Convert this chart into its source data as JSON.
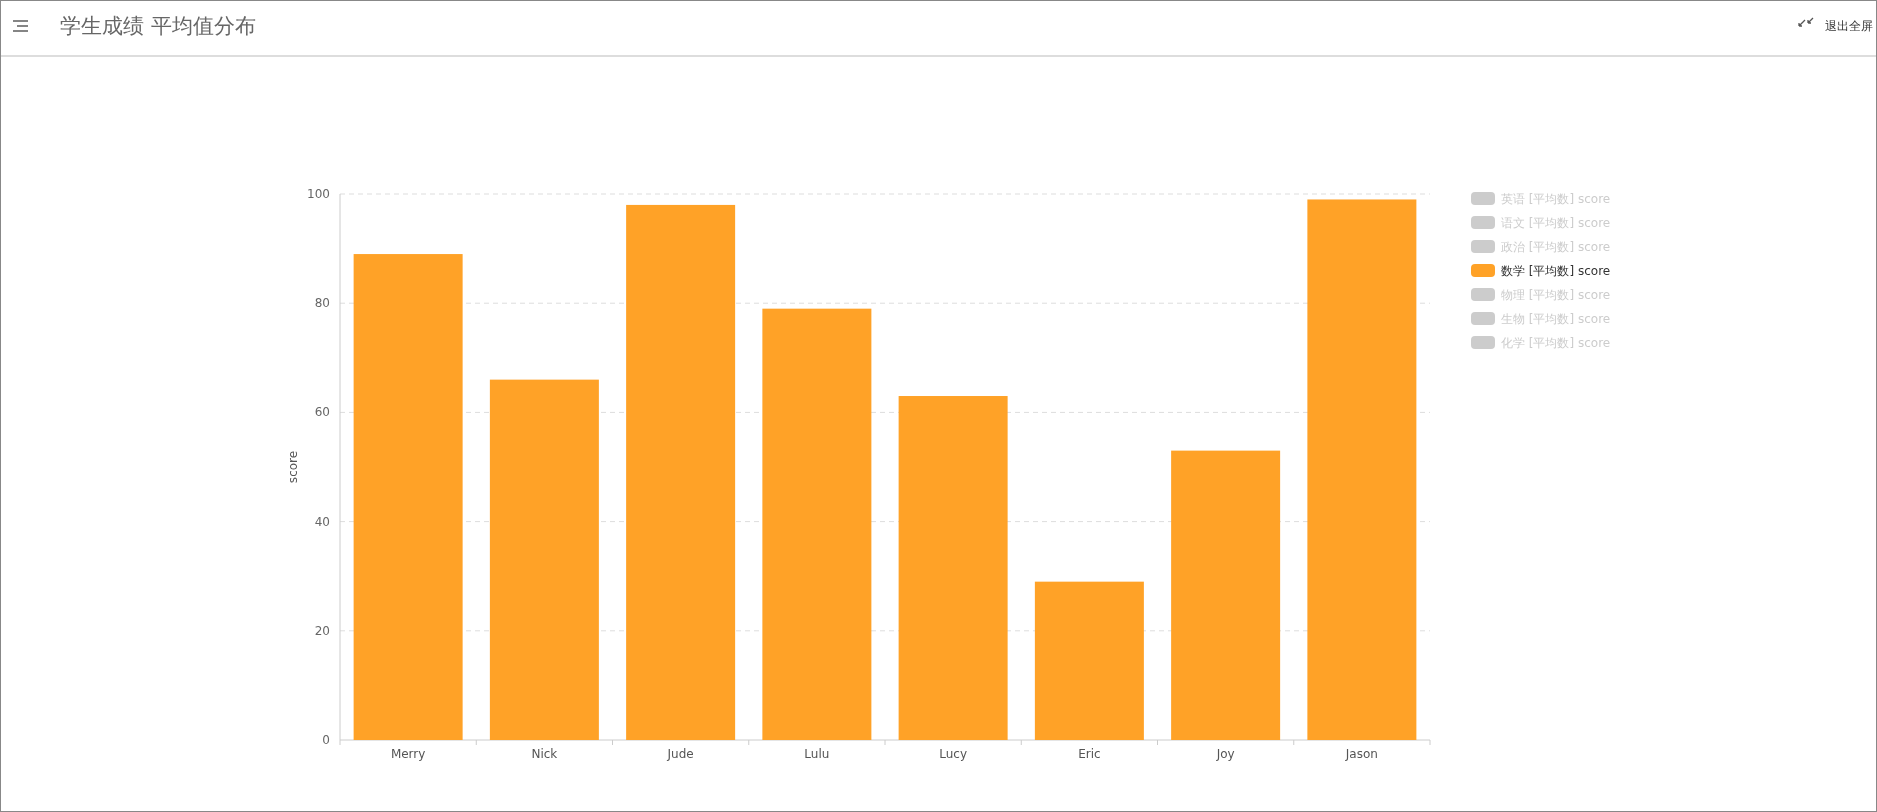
{
  "chart_data": {
    "type": "bar",
    "title": "学生成绩 平均值分布",
    "ylabel": "score",
    "categories": [
      "Merry",
      "Nick",
      "Jude",
      "Lulu",
      "Lucy",
      "Eric",
      "Joy",
      "Jason"
    ],
    "series": [
      {
        "name": "英语 [平均数] score",
        "color": "#cccccc",
        "values": [
          null,
          null,
          null,
          null,
          null,
          null,
          null,
          null
        ]
      },
      {
        "name": "语文 [平均数] score",
        "color": "#cccccc",
        "values": [
          null,
          null,
          null,
          null,
          null,
          null,
          null,
          null
        ]
      },
      {
        "name": "政治 [平均数] score",
        "color": "#cccccc",
        "values": [
          null,
          null,
          null,
          null,
          null,
          null,
          null,
          null
        ]
      },
      {
        "name": "数学 [平均数] score",
        "color": "#ffa227",
        "values": [
          89,
          66,
          98,
          79,
          63,
          29,
          53,
          99
        ]
      },
      {
        "name": "物理 [平均数] score",
        "color": "#cccccc",
        "values": [
          null,
          null,
          null,
          null,
          null,
          null,
          null,
          null
        ]
      },
      {
        "name": "生物 [平均数] score",
        "color": "#cccccc",
        "values": [
          null,
          null,
          null,
          null,
          null,
          null,
          null,
          null
        ]
      },
      {
        "name": "化学 [平均数] score",
        "color": "#cccccc",
        "values": [
          null,
          null,
          null,
          null,
          null,
          null,
          null,
          null
        ]
      }
    ],
    "ylim": [
      0,
      100
    ],
    "yticks": [
      0,
      20,
      40,
      60,
      80,
      100
    ],
    "grid": "y",
    "legend": "right",
    "annotations": [
      "退出全屏"
    ]
  }
}
